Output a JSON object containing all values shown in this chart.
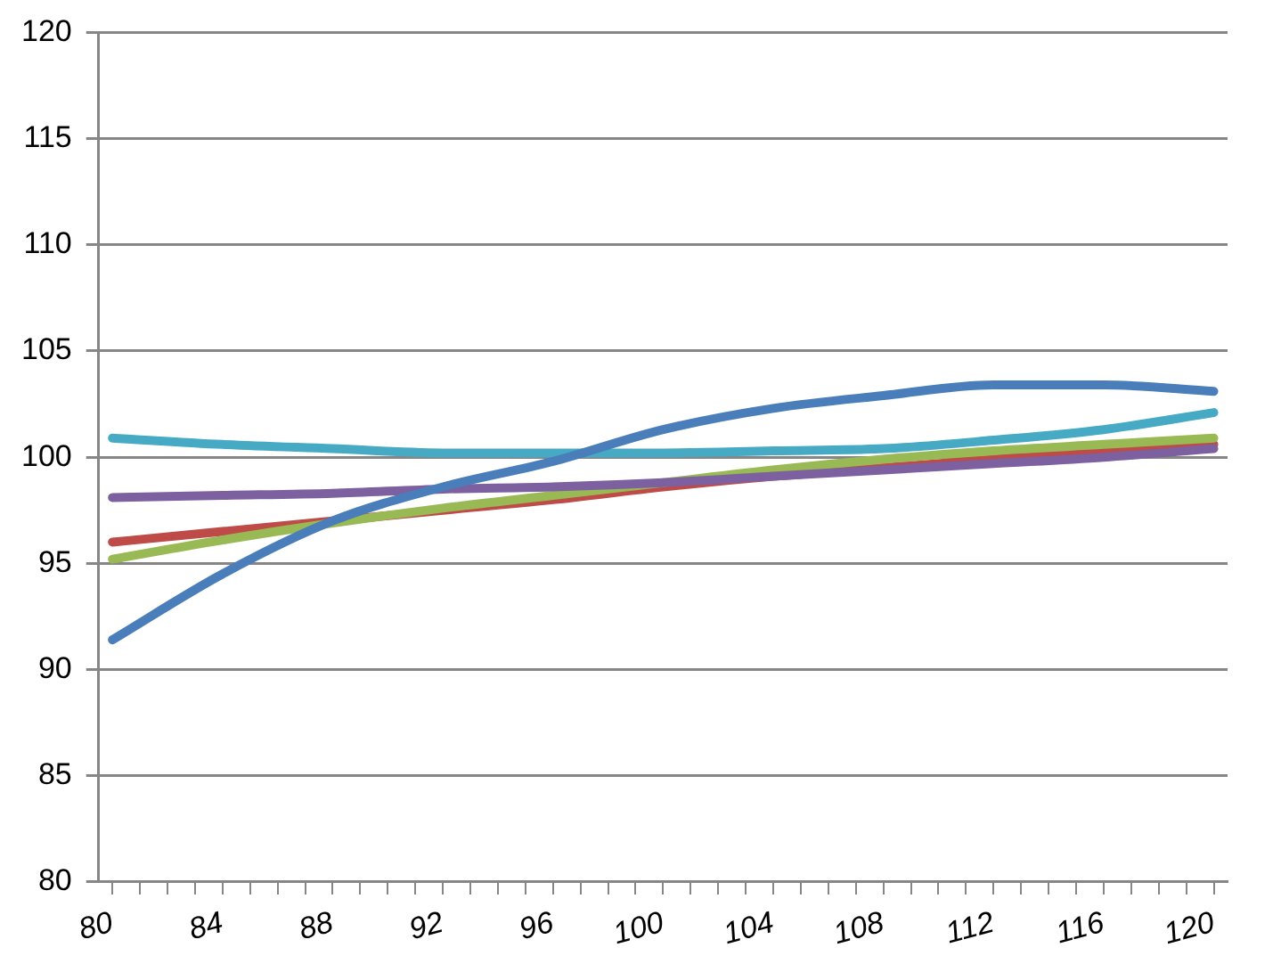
{
  "chart_data": {
    "type": "line",
    "x": [
      80,
      84,
      88,
      92,
      96,
      100,
      104,
      108,
      112,
      116,
      120
    ],
    "series": [
      {
        "color": "#be4b48",
        "values": [
          96.0,
          96.5,
          97.0,
          97.5,
          98.0,
          98.6,
          99.1,
          99.5,
          99.9,
          100.3,
          100.6
        ]
      },
      {
        "color": "#98b954",
        "values": [
          95.2,
          96.1,
          96.9,
          97.6,
          98.2,
          98.8,
          99.4,
          99.9,
          100.3,
          100.6,
          100.9
        ]
      },
      {
        "color": "#7d60a0",
        "values": [
          98.1,
          98.2,
          98.3,
          98.5,
          98.6,
          98.8,
          99.1,
          99.4,
          99.7,
          100.0,
          100.4
        ]
      },
      {
        "color": "#46aac5",
        "values": [
          100.9,
          100.6,
          100.4,
          100.2,
          100.2,
          100.2,
          100.3,
          100.4,
          100.8,
          101.3,
          102.1
        ]
      },
      {
        "color": "#4a7ebb",
        "values": [
          91.4,
          94.5,
          97.0,
          98.6,
          99.8,
          101.3,
          102.3,
          102.9,
          103.4,
          103.4,
          103.1
        ]
      }
    ],
    "xlim": [
      79.5,
      120.5
    ],
    "xticks": [
      80,
      {
        "value": 81,
        "label": null
      },
      {
        "value": 82,
        "label": null
      },
      {
        "value": 83,
        "label": null
      },
      84,
      {
        "value": 85,
        "label": null
      },
      {
        "value": 86,
        "label": null
      },
      {
        "value": 87,
        "label": null
      },
      88,
      {
        "value": 89,
        "label": null
      },
      {
        "value": 90,
        "label": null
      },
      {
        "value": 91,
        "label": null
      },
      92,
      {
        "value": 93,
        "label": null
      },
      {
        "value": 94,
        "label": null
      },
      {
        "value": 95,
        "label": null
      },
      96,
      {
        "value": 97,
        "label": null
      },
      {
        "value": 98,
        "label": null
      },
      {
        "value": 99,
        "label": null
      },
      100,
      {
        "value": 101,
        "label": null
      },
      {
        "value": 102,
        "label": null
      },
      {
        "value": 103,
        "label": null
      },
      104,
      {
        "value": 105,
        "label": null
      },
      {
        "value": 106,
        "label": null
      },
      {
        "value": 107,
        "label": null
      },
      108,
      {
        "value": 109,
        "label": null
      },
      {
        "value": 110,
        "label": null
      },
      {
        "value": 111,
        "label": null
      },
      112,
      {
        "value": 113,
        "label": null
      },
      {
        "value": 114,
        "label": null
      },
      {
        "value": 115,
        "label": null
      },
      116,
      {
        "value": 117,
        "label": null
      },
      {
        "value": 118,
        "label": null
      },
      {
        "value": 119,
        "label": null
      },
      120
    ],
    "ylim": [
      80,
      120
    ],
    "yticks": [
      80,
      85,
      90,
      95,
      100,
      105,
      110,
      115,
      120
    ],
    "grid": "y",
    "legend": false,
    "marker": "none",
    "line_style": "solid"
  }
}
